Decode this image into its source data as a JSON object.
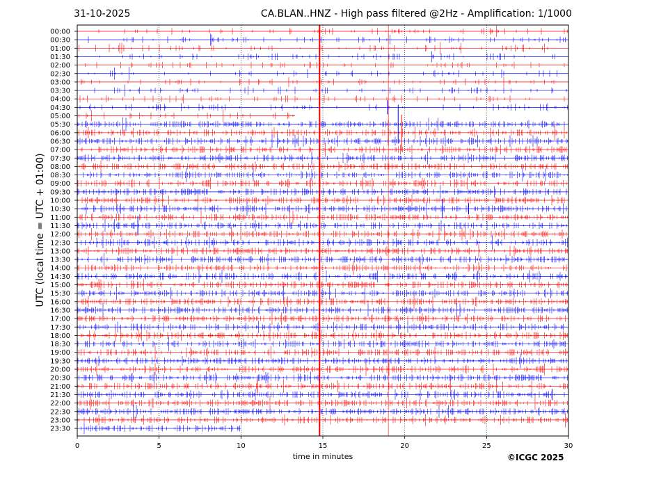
{
  "header": {
    "date": "31-10-2025",
    "title": "CA.BLAN..HNZ - High pass filtered @2Hz - Amplification: 1/1000"
  },
  "footer": {
    "copyright": "©ICGC 2025"
  },
  "chart_data": {
    "type": "line",
    "title": "CA.BLAN..HNZ - High pass filtered @2Hz - Amplification: 1/1000",
    "xlabel": "time in minutes",
    "ylabel": "UTC (local time = UTC + 01:00)",
    "xlim": [
      0,
      30
    ],
    "x_ticks": [
      0,
      5,
      10,
      15,
      20,
      25,
      30
    ],
    "vertical_gridlines": [
      5,
      10,
      15,
      20,
      25
    ],
    "grid": "vertical dotted",
    "rows": [
      "00:00",
      "00:30",
      "01:00",
      "01:30",
      "02:00",
      "02:30",
      "03:00",
      "03:30",
      "04:00",
      "04:30",
      "05:00",
      "05:30",
      "06:00",
      "06:30",
      "07:00",
      "07:30",
      "08:00",
      "08:30",
      "09:00",
      "09:30",
      "10:00",
      "10:30",
      "11:00",
      "11:30",
      "12:00",
      "12:30",
      "13:00",
      "13:30",
      "14:00",
      "14:30",
      "15:00",
      "15:30",
      "16:00",
      "16:30",
      "17:00",
      "17:30",
      "18:00",
      "18:30",
      "19:00",
      "19:30",
      "20:00",
      "20:30",
      "21:00",
      "21:30",
      "22:00",
      "22:30",
      "23:00",
      "23:30"
    ],
    "trace_colors": [
      "#ff0000",
      "#0000ff"
    ],
    "current_time_marker_minute": 14.8,
    "marker_color": "#ff0000",
    "event_line_minute": 19.0,
    "partial_rows": {
      "05:00": 13.3,
      "23:30": 10.0
    }
  }
}
